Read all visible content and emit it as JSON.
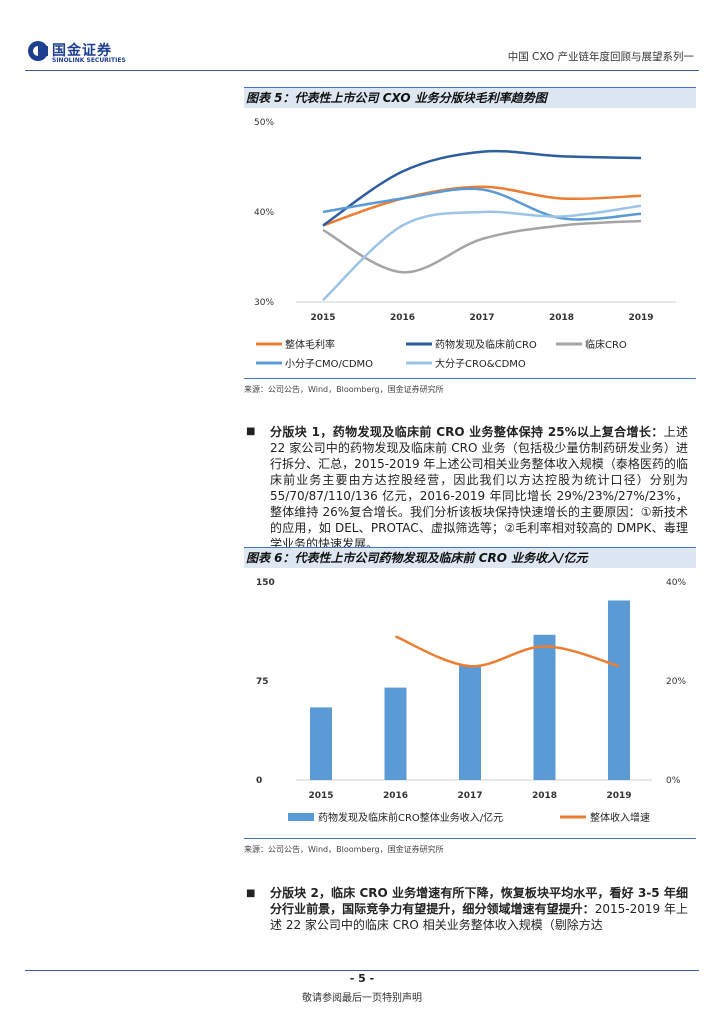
{
  "header": {
    "logo_cn": "国金证券",
    "logo_en": "SINOLINK SECURITIES",
    "report_title": "中国 CXO 产业链年度回顾与展望系列一"
  },
  "figure5": {
    "title": "图表 5：代表性上市公司 CXO 业务分版块毛利率趋势图",
    "source": "来源：公司公告，Wind，Bloomberg，国金证券研究所"
  },
  "para1": {
    "lead": "分版块 1，药物发现及临床前 CRO 业务整体保持 25%以上复合增长：",
    "body": "上述 22 家公司中的药物发现及临床前 CRO 业务（包括极少量仿制药研发业务）进行拆分、汇总，2015-2019 年上述公司相关业务整体收入规模（泰格医药的临床前业务主要由方达控股经营，因此我们以方达控股为统计口径）分别为 55/70/87/110/136 亿元，2016-2019 年同比增长 29%/23%/27%/23%，整体维持 26%复合增长。我们分析该板块保持快速增长的主要原因：①新技术的应用，如 DEL、PROTAC、虚拟筛选等；②毛利率相对较高的 DMPK、毒理学业务的快速发展。"
  },
  "figure6": {
    "title": "图表 6：代表性上市公司药物发现及临床前 CRO 业务收入/亿元",
    "source": "来源：公司公告，Wind，Bloomberg，国金证券研究所"
  },
  "para2": {
    "lead": "分版块 2，临床 CRO 业务增速有所下降，恢复板块平均水平，看好 3-5 年细分行业前景，国际竞争力有望提升，细分领域增速有望提升：",
    "body": "2015-2019 年上述 22 家公司中的临床 CRO 相关业务整体收入规模（剔除方达"
  },
  "footer": {
    "page": "- 5 -",
    "note": "敬请参阅最后一页特别声明"
  },
  "colors": {
    "overall": "#ed7d31",
    "discovery": "#2e5e9e",
    "clinical": "#a5a5a5",
    "small_molecule": "#5b9bd5",
    "large_molecule": "#9dc3e6",
    "bar": "#5b9bd5"
  },
  "chart_data": [
    {
      "type": "line",
      "title": "代表性上市公司 CXO 业务分版块毛利率趋势图",
      "categories": [
        "2015",
        "2016",
        "2017",
        "2018",
        "2019"
      ],
      "ylim": [
        0.3,
        0.5
      ],
      "yticks": [
        "30%",
        "40%",
        "50%"
      ],
      "yticks_values": [
        0.3,
        0.4,
        0.5
      ],
      "series": [
        {
          "name": "整体毛利率",
          "key": "overall",
          "values": [
            0.385,
            0.415,
            0.428,
            0.415,
            0.418
          ]
        },
        {
          "name": "药物发现及临床前CRO",
          "key": "discovery",
          "values": [
            0.385,
            0.445,
            0.467,
            0.462,
            0.46
          ]
        },
        {
          "name": "临床CRO",
          "key": "clinical",
          "values": [
            0.38,
            0.333,
            0.37,
            0.385,
            0.39
          ]
        },
        {
          "name": "小分子CMO/CDMO",
          "key": "small_molecule",
          "values": [
            0.4,
            0.415,
            0.425,
            0.393,
            0.398
          ]
        },
        {
          "name": "大分子CRO&CDMO",
          "key": "large_molecule",
          "values": [
            0.302,
            0.385,
            0.4,
            0.395,
            0.407
          ]
        }
      ]
    },
    {
      "type": "bar",
      "title": "代表性上市公司药物发现及临床前 CRO 业务收入/亿元",
      "categories": [
        "2015",
        "2016",
        "2017",
        "2018",
        "2019"
      ],
      "series": [
        {
          "name": "药物发现及临床前CRO整体业务收入/亿元",
          "values": [
            55,
            70,
            87,
            110,
            136
          ],
          "axis": "left"
        },
        {
          "name": "整体收入增速",
          "values": [
            null,
            0.29,
            0.23,
            0.27,
            0.23
          ],
          "axis": "right",
          "type": "line"
        }
      ],
      "ylim": [
        0,
        150
      ],
      "y2lim": [
        0,
        0.4
      ],
      "yticks": [
        "0",
        "75",
        "150"
      ],
      "y2ticks": [
        "0%",
        "20%",
        "40%"
      ]
    }
  ]
}
